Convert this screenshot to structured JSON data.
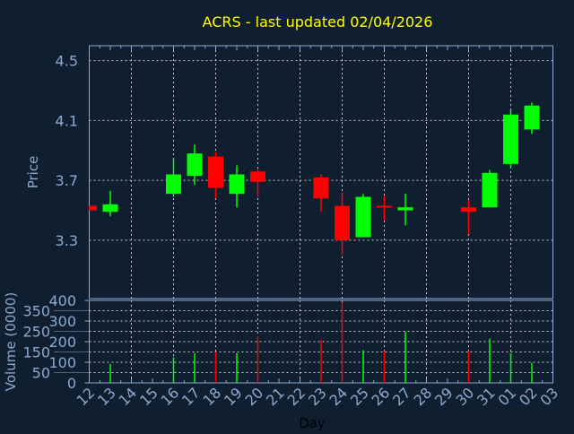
{
  "chart_data": [
    {
      "type": "candlestick",
      "title": "ACRS - last updated 02/04/2026",
      "xlabel": "",
      "ylabel": "Price",
      "ylim": [
        2.91,
        4.6
      ],
      "yticks": [
        "3.3",
        "3.7",
        "4.1",
        "4.5"
      ],
      "grid": true,
      "categories": [
        "12",
        "13",
        "14",
        "15",
        "16",
        "17",
        "18",
        "19",
        "20",
        "21",
        "22",
        "23",
        "24",
        "25",
        "26",
        "27",
        "28",
        "29",
        "30",
        "31",
        "01",
        "02",
        "03"
      ],
      "candles": [
        {
          "day": "12",
          "open": 3.53,
          "high": 3.53,
          "low": 3.5,
          "close": 3.5
        },
        {
          "day": "13",
          "open": 3.49,
          "high": 3.63,
          "low": 3.46,
          "close": 3.54
        },
        {
          "day": "16",
          "open": 3.61,
          "high": 3.84,
          "low": 3.59,
          "close": 3.74
        },
        {
          "day": "17",
          "open": 3.73,
          "high": 3.94,
          "low": 3.67,
          "close": 3.88
        },
        {
          "day": "18",
          "open": 3.86,
          "high": 3.89,
          "low": 3.58,
          "close": 3.65
        },
        {
          "day": "19",
          "open": 3.61,
          "high": 3.8,
          "low": 3.52,
          "close": 3.74
        },
        {
          "day": "20",
          "open": 3.76,
          "high": 3.78,
          "low": 3.59,
          "close": 3.69
        },
        {
          "day": "23",
          "open": 3.72,
          "high": 3.74,
          "low": 3.49,
          "close": 3.58
        },
        {
          "day": "24",
          "open": 3.53,
          "high": 3.62,
          "low": 3.2,
          "close": 3.3
        },
        {
          "day": "25",
          "open": 3.32,
          "high": 3.61,
          "low": 3.32,
          "close": 3.59
        },
        {
          "day": "26",
          "open": 3.53,
          "high": 3.6,
          "low": 3.43,
          "close": 3.52
        },
        {
          "day": "27",
          "open": 3.5,
          "high": 3.61,
          "low": 3.4,
          "close": 3.52
        },
        {
          "day": "30",
          "open": 3.52,
          "high": 3.57,
          "low": 3.34,
          "close": 3.49
        },
        {
          "day": "31",
          "open": 3.52,
          "high": 3.77,
          "low": 3.52,
          "close": 3.75
        },
        {
          "day": "01",
          "open": 3.81,
          "high": 4.17,
          "low": 3.78,
          "close": 4.14
        },
        {
          "day": "02",
          "open": 4.04,
          "high": 4.22,
          "low": 4.01,
          "close": 4.2
        }
      ],
      "colors": {
        "up": "#00ff00",
        "down": "#ff0000",
        "title": "#ffff00",
        "axis": "#8aaad0",
        "grid": "#c8c8c8",
        "background": "#0f1f30"
      }
    },
    {
      "type": "bar",
      "xlabel": "Day",
      "ylabel": "Volume (0000)",
      "ylim": [
        0,
        400
      ],
      "yticks": [
        "0",
        "50",
        "100",
        "150",
        "200",
        "250",
        "300",
        "350",
        "400"
      ],
      "grid": true,
      "categories": [
        "12",
        "13",
        "14",
        "15",
        "16",
        "17",
        "18",
        "19",
        "20",
        "21",
        "22",
        "23",
        "24",
        "25",
        "26",
        "27",
        "28",
        "29",
        "30",
        "31",
        "01",
        "02",
        "03"
      ],
      "bars": [
        {
          "day": "13",
          "value": 92,
          "direction": "up"
        },
        {
          "day": "16",
          "value": 124,
          "direction": "up"
        },
        {
          "day": "17",
          "value": 144,
          "direction": "up"
        },
        {
          "day": "18",
          "value": 150,
          "direction": "down"
        },
        {
          "day": "19",
          "value": 144,
          "direction": "up"
        },
        {
          "day": "20",
          "value": 227,
          "direction": "down"
        },
        {
          "day": "23",
          "value": 208,
          "direction": "down"
        },
        {
          "day": "24",
          "value": 393,
          "direction": "down"
        },
        {
          "day": "25",
          "value": 159,
          "direction": "up"
        },
        {
          "day": "26",
          "value": 155,
          "direction": "down"
        },
        {
          "day": "27",
          "value": 248,
          "direction": "up"
        },
        {
          "day": "30",
          "value": 155,
          "direction": "down"
        },
        {
          "day": "31",
          "value": 215,
          "direction": "up"
        },
        {
          "day": "01",
          "value": 144,
          "direction": "up"
        },
        {
          "day": "02",
          "value": 97,
          "direction": "up"
        }
      ]
    }
  ]
}
